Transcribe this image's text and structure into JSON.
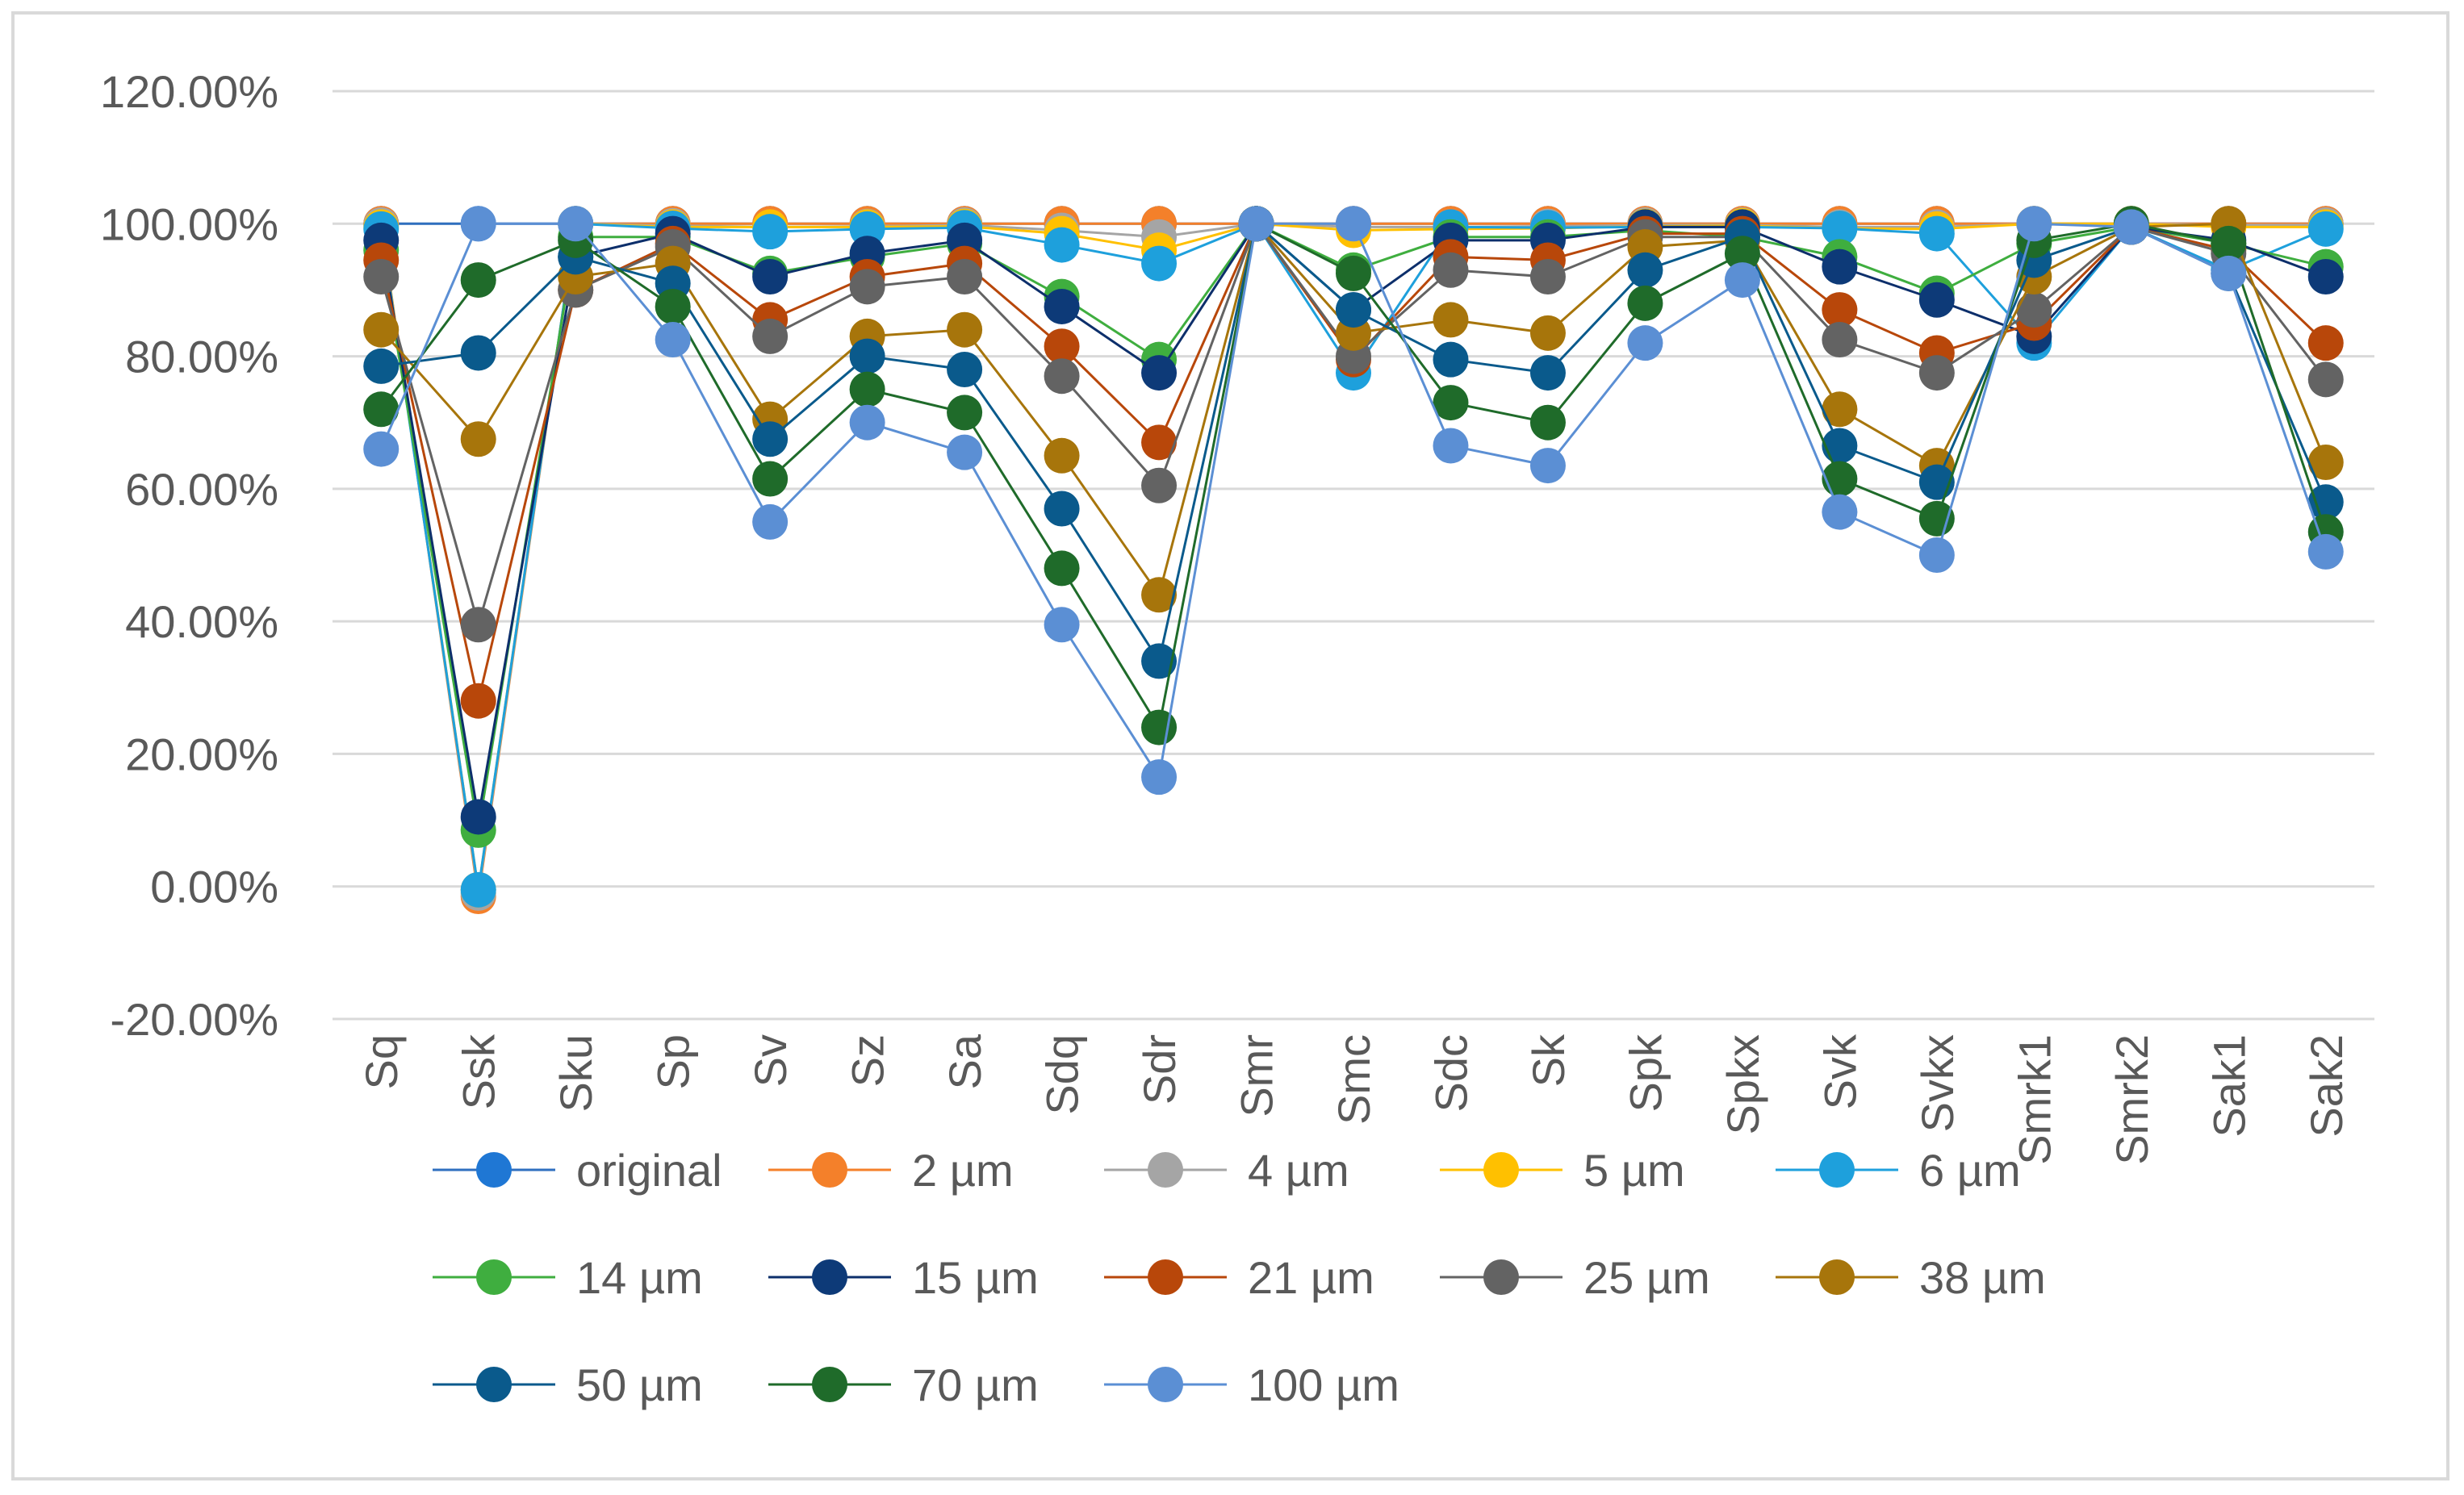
{
  "chart_data": {
    "type": "line",
    "title": "",
    "xlabel": "",
    "ylabel": "",
    "ylim": [
      -20,
      120
    ],
    "ytick_step": 20,
    "ytick_labels": [
      "-20.00%",
      "0.00%",
      "20.00%",
      "40.00%",
      "60.00%",
      "80.00%",
      "100.00%",
      "120.00%"
    ],
    "grid": true,
    "legend_position": "bottom",
    "categories": [
      "Sq",
      "Ssk",
      "Sku",
      "Sp",
      "Sv",
      "Sz",
      "Sa",
      "Sdq",
      "Sdr",
      "Smr",
      "Smc",
      "Sdc",
      "Sk",
      "Spk",
      "Spkx",
      "Svk",
      "Svkx",
      "Smrk1",
      "Smrk2",
      "Sak1",
      "Sak2"
    ],
    "series": [
      {
        "name": "original",
        "color": "#2f6fbf",
        "marker": "#1f77d4",
        "values": [
          100,
          100,
          100,
          100,
          100,
          100,
          100,
          100,
          100,
          100,
          100,
          100,
          100,
          100,
          100,
          100,
          100,
          100,
          100,
          100,
          100
        ]
      },
      {
        "name": "2 µm",
        "color": "#f4802a",
        "marker": "#f4802a",
        "values": [
          100,
          -1.5,
          100,
          100,
          100,
          100,
          100,
          100,
          100,
          100,
          100,
          100,
          100,
          100,
          100,
          100,
          100,
          100,
          100,
          100,
          100
        ]
      },
      {
        "name": "4 µm",
        "color": "#a5a5a5",
        "marker": "#a5a5a5",
        "values": [
          99.8,
          -1,
          100,
          99.7,
          99.5,
          99.6,
          99.8,
          99,
          98,
          100,
          99.5,
          99.5,
          99.6,
          99.8,
          99.8,
          99.5,
          99.5,
          100,
          100,
          99.8,
          99.8
        ]
      },
      {
        "name": "5 µm",
        "color": "#ffc000",
        "marker": "#ffc000",
        "values": [
          99.5,
          -0.5,
          100,
          99.5,
          99.5,
          99.5,
          99.6,
          98.5,
          96,
          100,
          99,
          99.2,
          99.3,
          99.6,
          99.7,
          99.3,
          99.2,
          100,
          100,
          99.5,
          99.5
        ]
      },
      {
        "name": "6 µm",
        "color": "#1ea0dc",
        "marker": "#1ea0dc",
        "values": [
          99.2,
          -0.5,
          100,
          99.3,
          98.8,
          99.2,
          99.4,
          96.8,
          94,
          100,
          77.5,
          99.5,
          99.4,
          99.5,
          99.5,
          99.3,
          98.5,
          82,
          99.5,
          93,
          99.2
        ]
      },
      {
        "name": "14 µm",
        "color": "#3fae3f",
        "marker": "#3fae3f",
        "values": [
          96,
          8.5,
          98,
          98,
          92.5,
          95,
          97,
          89,
          79.5,
          100,
          93,
          98,
          98,
          99,
          98,
          95,
          89.5,
          97,
          99.5,
          97,
          93.5
        ]
      },
      {
        "name": "15 µm",
        "color": "#0d2f6b",
        "marker": "#0d3a78",
        "values": [
          97.5,
          10.5,
          95,
          98.5,
          92,
          95.5,
          97.5,
          87.5,
          77.5,
          100,
          87,
          97.5,
          97.5,
          99.5,
          99.5,
          93.5,
          88.5,
          83,
          99.5,
          97.5,
          92
        ]
      },
      {
        "name": "21 µm",
        "color": "#b8470a",
        "marker": "#b8470a",
        "values": [
          94.5,
          28,
          90,
          97,
          85.5,
          92,
          94,
          81.5,
          67,
          100,
          79.5,
          95,
          94.5,
          98.5,
          98.5,
          87,
          80.5,
          85,
          99.5,
          96,
          82
        ]
      },
      {
        "name": "25 µm",
        "color": "#636363",
        "marker": "#636363",
        "values": [
          92,
          39.5,
          90,
          96.5,
          83,
          90.5,
          92,
          77,
          60.5,
          100,
          80,
          93,
          92,
          98,
          98,
          82.5,
          77.5,
          87,
          99.5,
          95.5,
          76.5
        ]
      },
      {
        "name": "38 µm",
        "color": "#a7750b",
        "marker": "#a7750b",
        "values": [
          84,
          67.5,
          92,
          94,
          70.5,
          83,
          84,
          65,
          44,
          100,
          83.5,
          85.5,
          83.5,
          96.5,
          97.5,
          72,
          63.5,
          92,
          99.5,
          100,
          64
        ]
      },
      {
        "name": "50 µm",
        "color": "#0a5a8c",
        "marker": "#0a5a8c",
        "values": [
          78.5,
          80.5,
          95,
          91,
          67.5,
          80,
          78,
          57,
          34,
          100,
          87,
          79.5,
          77.5,
          93,
          98,
          66.5,
          61,
          94.5,
          99.5,
          92.5,
          58
        ]
      },
      {
        "name": "70 µm",
        "color": "#1f6b2a",
        "marker": "#1f6b2a",
        "values": [
          72,
          91.5,
          97.5,
          87.5,
          61.5,
          75,
          71.5,
          48,
          24,
          100,
          92.5,
          73,
          70,
          88,
          95.5,
          61.5,
          55.5,
          97.5,
          100,
          97,
          53.5
        ]
      },
      {
        "name": "100 µm",
        "color": "#5b8fd4",
        "marker": "#5b8fd4",
        "values": [
          66,
          100,
          100,
          82.5,
          55,
          70,
          65.5,
          39.5,
          16.5,
          100,
          100,
          66.5,
          63.5,
          82,
          91.5,
          56.5,
          50,
          100,
          99.5,
          92.5,
          50.5
        ]
      }
    ]
  }
}
